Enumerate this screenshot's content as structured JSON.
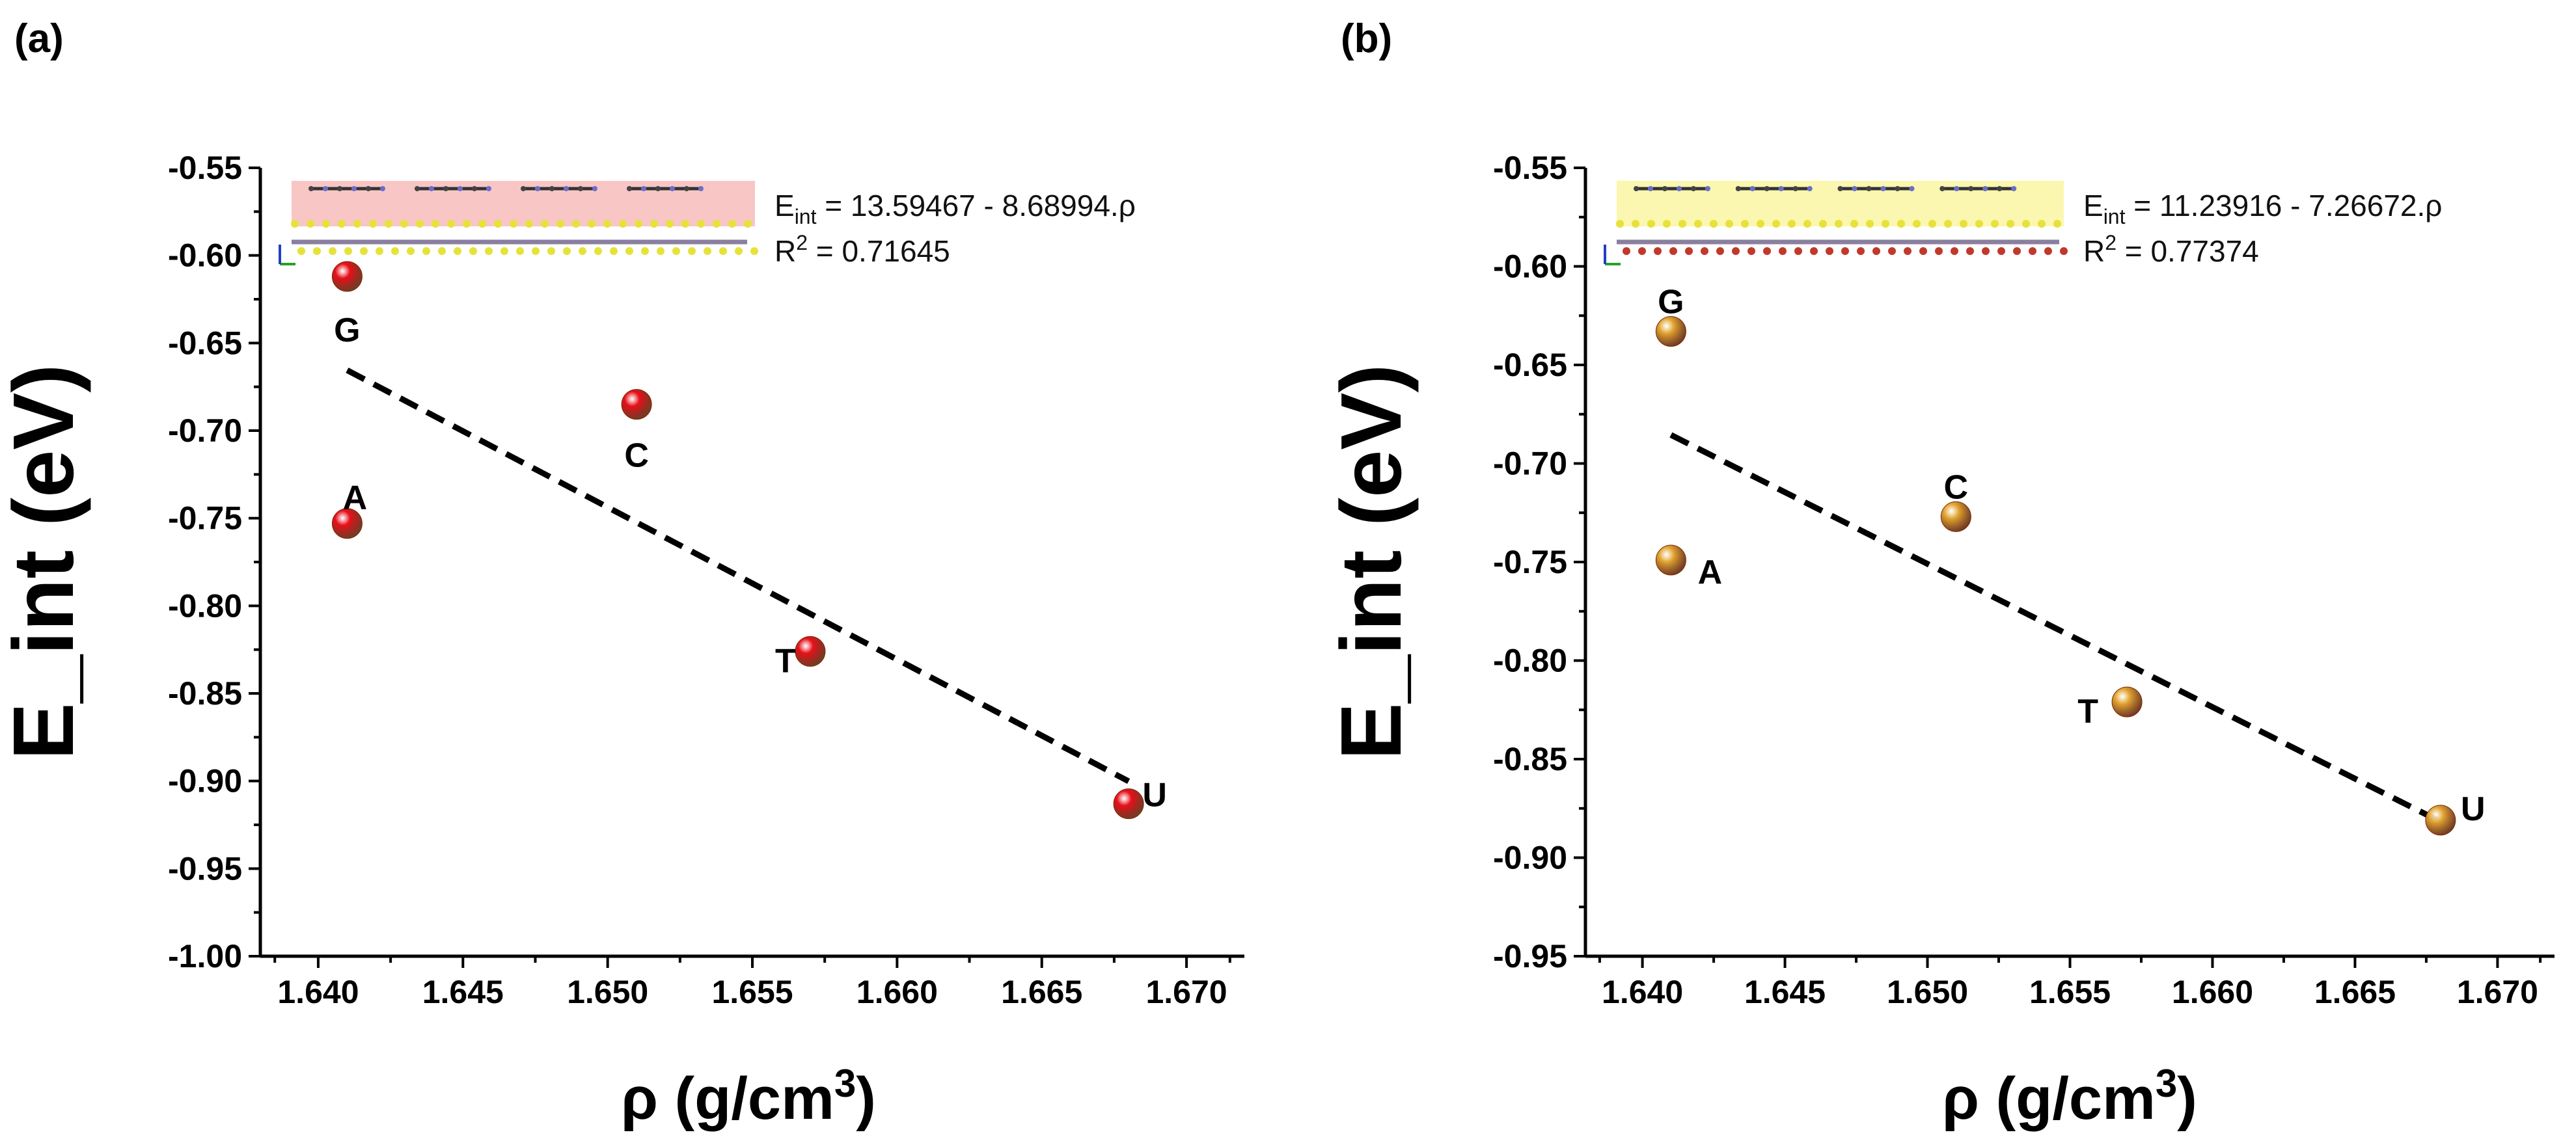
{
  "chart_data": [
    {
      "panel": "(a)",
      "type": "scatter",
      "xlabel": "ρ (g/cm3)",
      "xlabel_main": "ρ (g/cm",
      "xlabel_sup": "3",
      "xlabel_close": ")",
      "ylabel": "E_int (eV)",
      "xlim": [
        1.638,
        1.672
      ],
      "ylim": [
        -1.0,
        -0.55
      ],
      "xticks": [
        1.64,
        1.645,
        1.65,
        1.655,
        1.66,
        1.665,
        1.67
      ],
      "xtick_labels": [
        "1.640",
        "1.645",
        "1.650",
        "1.655",
        "1.660",
        "1.665",
        "1.670"
      ],
      "yticks": [
        -1.0,
        -0.95,
        -0.9,
        -0.85,
        -0.8,
        -0.75,
        -0.7,
        -0.65,
        -0.6,
        -0.55
      ],
      "ytick_labels": [
        "-1.00",
        "-0.95",
        "-0.90",
        "-0.85",
        "-0.80",
        "-0.75",
        "-0.70",
        "-0.65",
        "-0.60",
        "-0.55"
      ],
      "marker_color": "#e8101a",
      "points": [
        {
          "label": "G",
          "x": 1.641,
          "y": -0.612
        },
        {
          "label": "A",
          "x": 1.641,
          "y": -0.753
        },
        {
          "label": "C",
          "x": 1.651,
          "y": -0.685
        },
        {
          "label": "T",
          "x": 1.657,
          "y": -0.826
        },
        {
          "label": "U",
          "x": 1.668,
          "y": -0.913
        }
      ],
      "fit": {
        "intercept": 13.59467,
        "slope": -8.68994,
        "x_range": [
          1.641,
          1.668
        ]
      },
      "equation_prefix": "E",
      "equation_sub": "int",
      "equation_rest": " = 13.59467 - 8.68994.ρ",
      "r2_prefix": "R",
      "r2_sup": "2",
      "r2_rest": " = 0.71645",
      "inset_color": "#f9c6c6"
    },
    {
      "panel": "(b)",
      "type": "scatter",
      "xlabel": "ρ (g/cm3)",
      "xlabel_main": "ρ (g/cm",
      "xlabel_sup": "3",
      "xlabel_close": ")",
      "ylabel": "E_int (eV)",
      "xlim": [
        1.638,
        1.672
      ],
      "ylim": [
        -0.95,
        -0.55
      ],
      "xticks": [
        1.64,
        1.645,
        1.65,
        1.655,
        1.66,
        1.665,
        1.67
      ],
      "xtick_labels": [
        "1.640",
        "1.645",
        "1.650",
        "1.655",
        "1.660",
        "1.665",
        "1.670"
      ],
      "yticks": [
        -0.95,
        -0.9,
        -0.85,
        -0.8,
        -0.75,
        -0.7,
        -0.65,
        -0.6,
        -0.55
      ],
      "ytick_labels": [
        "-0.95",
        "-0.90",
        "-0.85",
        "-0.80",
        "-0.75",
        "-0.70",
        "-0.65",
        "-0.60",
        "-0.55"
      ],
      "marker_color": "#e3a531",
      "points": [
        {
          "label": "G",
          "x": 1.641,
          "y": -0.633
        },
        {
          "label": "A",
          "x": 1.641,
          "y": -0.749
        },
        {
          "label": "C",
          "x": 1.651,
          "y": -0.727
        },
        {
          "label": "T",
          "x": 1.657,
          "y": -0.821
        },
        {
          "label": "U",
          "x": 1.668,
          "y": -0.881
        }
      ],
      "fit": {
        "intercept": 11.23916,
        "slope": -7.26672,
        "x_range": [
          1.641,
          1.668
        ]
      },
      "equation_prefix": "E",
      "equation_sub": "int",
      "equation_rest": " = 11.23916 - 7.26672.ρ",
      "r2_prefix": "R",
      "r2_sup": "2",
      "r2_rest": " = 0.77374",
      "inset_color": "#fbf6b0"
    }
  ]
}
